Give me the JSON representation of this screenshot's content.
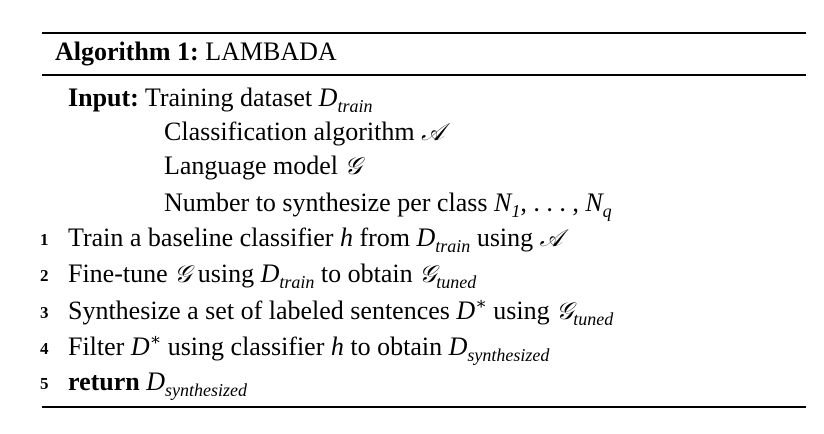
{
  "algorithm": {
    "title_label": "Algorithm 1:",
    "title_name": "LAMBADA",
    "input_label": "Input:",
    "inputs": [
      {
        "text": "Training dataset",
        "sym": "D",
        "sub": "train"
      },
      {
        "text": "Classification algorithm",
        "sym": "𝒜"
      },
      {
        "text": "Language model",
        "sym": "𝒢"
      },
      {
        "text": "Number to synthesize per class",
        "sym": "N",
        "sub1": "1",
        "mid": ", . . . , ",
        "sym2": "N",
        "sub2": "q"
      }
    ],
    "steps": [
      {
        "num": "1",
        "t1": "Train a baseline classifier",
        "sym1": "h",
        "t2": "from",
        "sym2": "D",
        "sub2": "train",
        "t3": "using",
        "sym3": "𝒜"
      },
      {
        "num": "2",
        "t1": "Fine-tune",
        "sym1": "𝒢",
        "t2": "using",
        "sym2": "D",
        "sub2": "train",
        "t3": "to obtain",
        "sym3": "𝒢",
        "sub3": "tuned"
      },
      {
        "num": "3",
        "t1": "Synthesize a set of labeled sentences",
        "sym1": "D",
        "sup1": "∗",
        "t2": "using",
        "sym2": "𝒢",
        "sub2": "tuned"
      },
      {
        "num": "4",
        "t1": "Filter",
        "sym1": "D",
        "sup1": "∗",
        "t2": "using classifier",
        "sym2": "h",
        "t3": "to obtain",
        "sym3": "D",
        "sub3": "synthesized"
      },
      {
        "num": "5",
        "kw": "return",
        "sym1": "D",
        "sub1": "synthesized"
      }
    ]
  }
}
